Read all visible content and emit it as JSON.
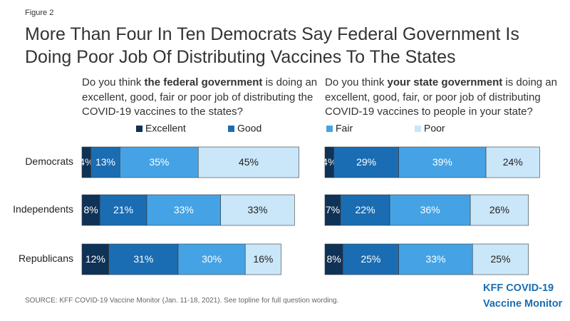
{
  "figure_label": "Figure 2",
  "title": [
    "More Than Four In Ten Democrats Say Federal Government Is",
    "Doing Poor Job Of Distributing  Vaccines To The States"
  ],
  "source": "SOURCE: KFF COVID-19 Vaccine Monitor (Jan. 11-18, 2021). See topline for full question wording.",
  "logo": [
    "KFF COVID-19",
    "Vaccine Monitor"
  ],
  "chart_data": [
    {
      "type": "bar",
      "orientation": "horizontal",
      "stacked": true,
      "subtitle_parts": [
        {
          "text": "Do you think ",
          "bold": false
        },
        {
          "text": "the federal government",
          "bold": true
        },
        {
          "text": " is doing an excellent, good, fair or poor job of distributing the COVID-19 vaccines to the states?",
          "bold": false
        }
      ],
      "categories": [
        "Democrats",
        "Independents",
        "Republicans"
      ],
      "series": [
        {
          "name": "Excellent",
          "color": "#0f3257",
          "label_color": "#ffffff",
          "values": [
            4,
            8,
            12
          ],
          "value_labels": [
            "4%",
            "8%",
            "12%"
          ]
        },
        {
          "name": "Good",
          "color": "#1a6db3",
          "label_color": "#ffffff",
          "values": [
            13,
            21,
            31
          ],
          "value_labels": [
            "13%",
            "21%",
            "31%"
          ]
        },
        {
          "name": "Fair",
          "color": "#45a3e5",
          "label_color": "#ffffff",
          "values": [
            35,
            33,
            30
          ],
          "value_labels": [
            "35%",
            "33%",
            "30%"
          ]
        },
        {
          "name": "Poor",
          "color": "#cae6f9",
          "label_color": "#222222",
          "values": [
            45,
            33,
            16
          ],
          "value_labels": [
            "45%",
            "33%",
            "16%"
          ]
        }
      ]
    },
    {
      "type": "bar",
      "orientation": "horizontal",
      "stacked": true,
      "subtitle_parts": [
        {
          "text": "Do you think ",
          "bold": false
        },
        {
          "text": "your state government",
          "bold": true
        },
        {
          "text": " is doing an excellent, good, fair, or poor job of distributing COVID-19 vaccines to people in your state?",
          "bold": false
        }
      ],
      "categories": [
        "Democrats",
        "Independents",
        "Republicans"
      ],
      "series": [
        {
          "name": "Excellent",
          "color": "#0f3257",
          "label_color": "#ffffff",
          "values": [
            4,
            7,
            8
          ],
          "value_labels": [
            "4%",
            "7%",
            "8%"
          ]
        },
        {
          "name": "Good",
          "color": "#1a6db3",
          "label_color": "#ffffff",
          "values": [
            29,
            22,
            25
          ],
          "value_labels": [
            "29%",
            "22%",
            "25%"
          ]
        },
        {
          "name": "Fair",
          "color": "#45a3e5",
          "label_color": "#ffffff",
          "values": [
            39,
            36,
            33
          ],
          "value_labels": [
            "39%",
            "36%",
            "33%"
          ]
        },
        {
          "name": "Poor",
          "color": "#cae6f9",
          "label_color": "#222222",
          "values": [
            24,
            26,
            25
          ],
          "value_labels": [
            "24%",
            "26%",
            "25%"
          ]
        }
      ]
    }
  ]
}
